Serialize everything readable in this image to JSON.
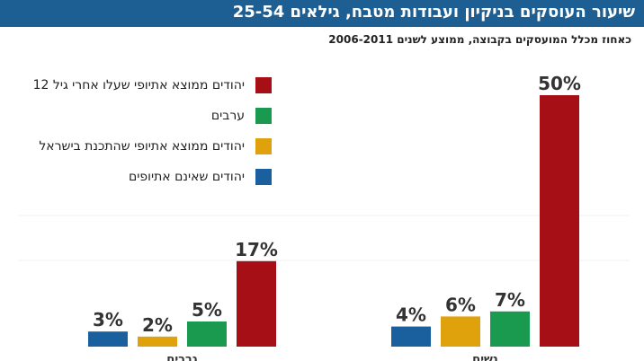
{
  "header": {
    "title": "שיעור העוסקים בניקיון ועבודות מטבח, גילאים 25-54",
    "subtitle": "כאחוז מכלל המועסקים בקבוצה, ממוצע לשנים 2006-2011"
  },
  "chart_data": {
    "type": "bar",
    "categories": [
      "נשים",
      "גברים"
    ],
    "series": [
      {
        "name": "יהודים שאינם אתיופים",
        "color": "#1a5f9e",
        "values": [
          4,
          3
        ]
      },
      {
        "name": "יהודים ממוצא אתיופי שהתכנת בישראל",
        "color": "#e0a20c",
        "values": [
          6,
          2
        ]
      },
      {
        "name": "ערבים",
        "color": "#1a9a4e",
        "values": [
          7,
          5
        ]
      },
      {
        "name": "יהודים ממוצא אתיופי שעלו אחרי גיל 12",
        "color": "#a50f15",
        "values": [
          50,
          17
        ]
      }
    ],
    "value_labels": [
      [
        "4%",
        "6%",
        "7%",
        "50%"
      ],
      [
        "3%",
        "2%",
        "5%",
        "17%"
      ]
    ],
    "ylim": [
      0,
      50
    ],
    "grid": false,
    "legend_position": "top-left"
  }
}
